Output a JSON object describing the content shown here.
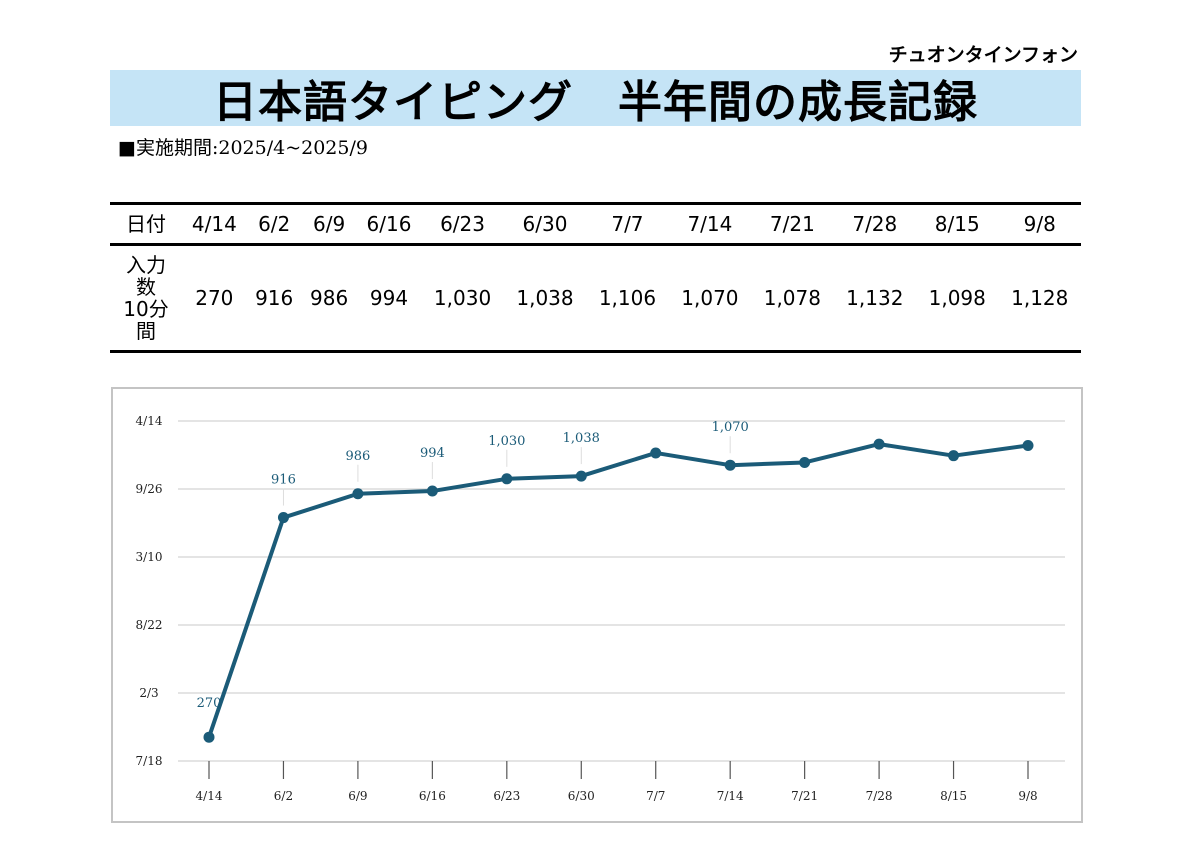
{
  "header": {
    "brand": "チュオンタインフォン",
    "title": "日本語タイピング　半年間の成長記録",
    "period": "■実施期間:2025/4~2025/9"
  },
  "table": {
    "row_label_dates": "日付",
    "row_label_values": "入力数10分間",
    "row_label_values_lines": [
      "入力",
      "数",
      "10分",
      "間"
    ],
    "dates": [
      "4/14",
      "6/2",
      "6/9",
      "6/16",
      "6/23",
      "6/30",
      "7/7",
      "7/14",
      "7/21",
      "7/28",
      "8/15",
      "9/8"
    ],
    "values": [
      "270",
      "916",
      "986",
      "994",
      "1,030",
      "1,038",
      "1,106",
      "1,070",
      "1,078",
      "1,132",
      "1,098",
      "1,128"
    ]
  },
  "chart_data": {
    "type": "line",
    "title": "",
    "xlabel": "",
    "ylabel": "",
    "categories": [
      "4/14",
      "6/2",
      "6/9",
      "6/16",
      "6/23",
      "6/30",
      "7/7",
      "7/14",
      "7/21",
      "7/28",
      "8/15",
      "9/8"
    ],
    "series": [
      {
        "name": "入力数10分間",
        "values": [
          270,
          916,
          986,
          994,
          1030,
          1038,
          1106,
          1070,
          1078,
          1132,
          1098,
          1128
        ]
      }
    ],
    "data_labels": [
      "270",
      "916",
      "986",
      "994",
      "1,030",
      "1,038",
      "",
      "1,070",
      "",
      "",
      "",
      ""
    ],
    "y_tick_labels": [
      "7/18",
      "2/3",
      "8/22",
      "3/10",
      "9/26",
      "4/14"
    ],
    "ylim": [
      200,
      1200
    ],
    "grid": true,
    "legend": "none",
    "colors": {
      "line": "#1b5b78",
      "label": "#1b5b78",
      "grid": "#d4d4d4",
      "axis_text": "#222222",
      "tick": "#555555"
    }
  }
}
